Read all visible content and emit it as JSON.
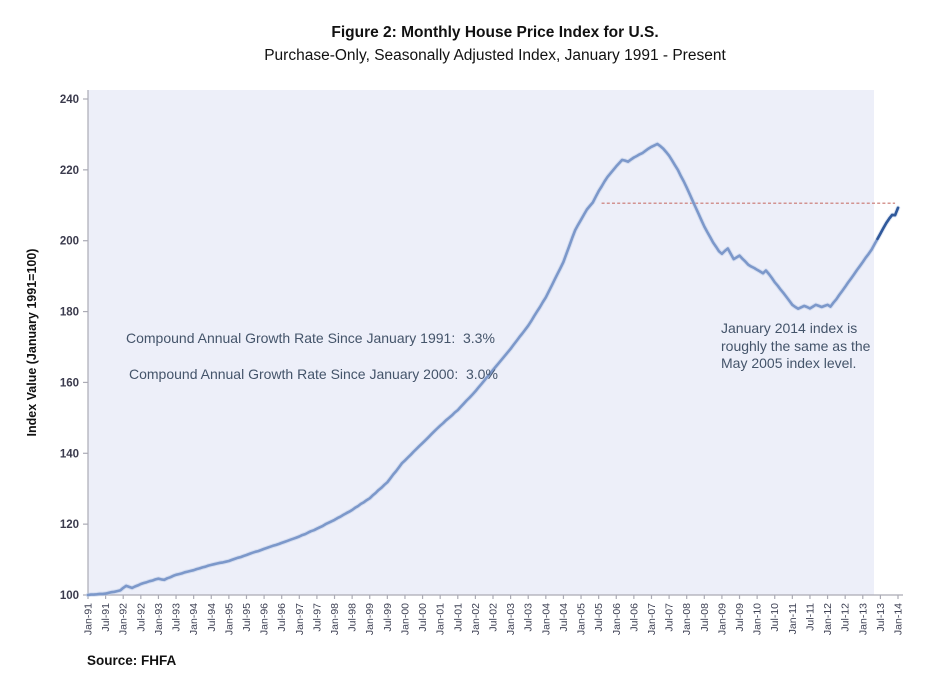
{
  "figure": {
    "title": "Figure 2: Monthly House Price Index for U.S.",
    "subtitle": "Purchase-Only, Seasonally Adjusted Index, January 1991 - Present",
    "source": "Source: FHFA"
  },
  "annotations": {
    "cagr_1991": "Compound Annual Growth Rate Since January 1991:  3.3%",
    "cagr_2000": "Compound Annual Growth Rate Since January 2000:  3.0%",
    "note": "January 2014 index is roughly the same as the May 2005 index level."
  },
  "colors": {
    "line": "#7C98CA",
    "line_halo": "#BAC9E6",
    "line_recent": "#30599B",
    "reference_line": "#C9756F",
    "plot_background": "#EDEFF9",
    "axis": "#ABABB5",
    "ytick_label": "#3B3B4D",
    "xtick_label": "#3E4154",
    "annotation_text": "#44546A"
  },
  "chart_data": {
    "type": "line",
    "title": "Figure 2: Monthly House Price Index for U.S.",
    "subtitle": "Purchase-Only, Seasonally Adjusted Index, January 1991 - Present",
    "xlabel": "",
    "ylabel": "Index Value (January 1991=100)",
    "ylim": [
      100,
      240
    ],
    "yticks": [
      100,
      120,
      140,
      160,
      180,
      200,
      220,
      240
    ],
    "grid": false,
    "legend": "none",
    "x_tick_labels": [
      "Jan-91",
      "Jul-91",
      "Jan-92",
      "Jul-92",
      "Jan-93",
      "Jul-93",
      "Jan-94",
      "Jul-94",
      "Jan-95",
      "Jul-95",
      "Jan-96",
      "Jul-96",
      "Jan-97",
      "Jul-97",
      "Jan-98",
      "Jul-98",
      "Jan-99",
      "Jul-99",
      "Jan-00",
      "Jul-00",
      "Jan-01",
      "Jul-01",
      "Jan-02",
      "Jul-02",
      "Jan-03",
      "Jul-03",
      "Jan-04",
      "Jul-04",
      "Jan-05",
      "Jul-05",
      "Jan-06",
      "Jul-06",
      "Jan-07",
      "Jul-07",
      "Jan-08",
      "Jul-08",
      "Jan-09",
      "Jul-09",
      "Jan-10",
      "Jul-10",
      "Jan-11",
      "Jul-11",
      "Jan-12",
      "Jul-12",
      "Jan-13",
      "Jul-13",
      "Jan-14"
    ],
    "months_per_tick": 6,
    "series": [
      {
        "name": "Monthly House Price Index (seasonally adjusted)",
        "start": "Jan-91",
        "frequency": "monthly",
        "recent_segment_start_index": 269,
        "values": [
          100.0,
          100.1,
          100.1,
          100.2,
          100.3,
          100.3,
          100.4,
          100.6,
          100.8,
          100.9,
          101.1,
          101.3,
          102.0,
          102.6,
          102.3,
          102.0,
          102.4,
          102.7,
          103.1,
          103.4,
          103.6,
          103.9,
          104.1,
          104.4,
          104.6,
          104.4,
          104.3,
          104.7,
          105.0,
          105.4,
          105.7,
          105.9,
          106.1,
          106.4,
          106.6,
          106.8,
          107.0,
          107.3,
          107.5,
          107.8,
          108.0,
          108.3,
          108.5,
          108.7,
          108.9,
          109.1,
          109.2,
          109.4,
          109.6,
          109.9,
          110.2,
          110.5,
          110.7,
          111.0,
          111.3,
          111.6,
          111.9,
          112.2,
          112.4,
          112.7,
          113.0,
          113.3,
          113.6,
          113.9,
          114.1,
          114.4,
          114.7,
          115.0,
          115.3,
          115.6,
          115.9,
          116.2,
          116.5,
          116.9,
          117.2,
          117.6,
          118.0,
          118.3,
          118.7,
          119.1,
          119.5,
          120.0,
          120.4,
          120.8,
          121.2,
          121.7,
          122.1,
          122.6,
          123.1,
          123.5,
          124.0,
          124.6,
          125.1,
          125.7,
          126.2,
          126.8,
          127.3,
          128.1,
          128.8,
          129.6,
          130.3,
          131.1,
          131.8,
          132.9,
          134.0,
          135.0,
          136.1,
          137.2,
          138.0,
          138.8,
          139.6,
          140.5,
          141.3,
          142.1,
          142.9,
          143.7,
          144.5,
          145.4,
          146.2,
          147.0,
          147.8,
          148.5,
          149.3,
          150.0,
          150.7,
          151.5,
          152.2,
          153.1,
          154.0,
          154.9,
          155.7,
          156.6,
          157.5,
          158.5,
          159.5,
          160.5,
          161.5,
          162.5,
          163.5,
          164.5,
          165.5,
          166.5,
          167.5,
          168.5,
          169.5,
          170.6,
          171.7,
          172.8,
          173.8,
          174.9,
          176.0,
          177.3,
          178.7,
          180.0,
          181.3,
          182.7,
          184.0,
          185.7,
          187.3,
          189.0,
          190.7,
          192.3,
          194.0,
          196.3,
          198.5,
          200.8,
          203.0,
          204.5,
          205.9,
          207.4,
          208.8,
          209.8,
          210.8,
          212.4,
          214.0,
          215.3,
          216.7,
          218.0,
          219.0,
          220.0,
          221.0,
          221.9,
          222.8,
          222.6,
          222.3,
          222.9,
          223.5,
          223.9,
          224.4,
          224.8,
          225.4,
          226.0,
          226.5,
          226.9,
          227.3,
          226.7,
          226.0,
          225.0,
          224.0,
          222.7,
          221.3,
          220.0,
          218.3,
          216.7,
          215.0,
          213.2,
          211.3,
          209.5,
          207.7,
          205.8,
          204.0,
          202.5,
          201.0,
          199.5,
          198.3,
          197.0,
          196.3,
          197.1,
          197.8,
          196.3,
          194.8,
          195.3,
          195.8,
          194.9,
          194.1,
          193.2,
          192.7,
          192.3,
          191.8,
          191.3,
          190.8,
          191.6,
          190.6,
          189.5,
          188.3,
          187.3,
          186.2,
          185.2,
          184.1,
          183.0,
          181.9,
          181.3,
          180.8,
          181.2,
          181.6,
          181.3,
          180.9,
          181.4,
          181.9,
          181.6,
          181.3,
          181.6,
          181.9,
          181.4,
          182.5,
          183.5,
          184.7,
          185.8,
          187.0,
          188.2,
          189.3,
          190.5,
          191.7,
          192.8,
          194.0,
          195.2,
          196.3,
          197.5,
          199.0,
          200.5,
          202.0,
          203.5,
          205.0,
          206.2,
          207.3,
          207.2,
          209.3
        ]
      }
    ],
    "reference_line": {
      "value": 210.6,
      "style": "dashed",
      "start_month_index": 175,
      "end_month_index": 275,
      "meaning": "May 2005 index level"
    }
  }
}
